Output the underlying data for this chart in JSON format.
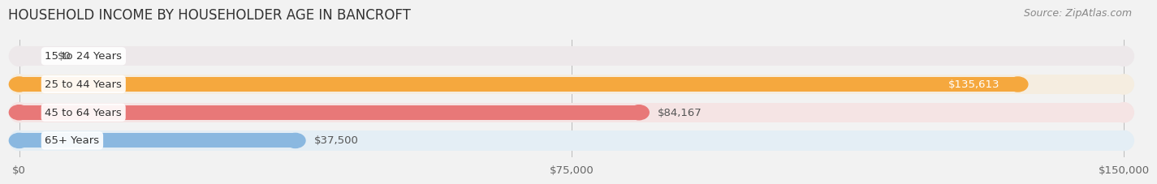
{
  "title": "HOUSEHOLD INCOME BY HOUSEHOLDER AGE IN BANCROFT",
  "source": "Source: ZipAtlas.com",
  "categories": [
    "15 to 24 Years",
    "25 to 44 Years",
    "45 to 64 Years",
    "65+ Years"
  ],
  "values": [
    0,
    135613,
    84167,
    37500
  ],
  "bar_colors": [
    "#f4a0b5",
    "#f5a83e",
    "#e87878",
    "#8ab8e0"
  ],
  "bar_bg_colors": [
    "#ede8ea",
    "#f5ede0",
    "#f5e4e4",
    "#e4eef5"
  ],
  "value_labels": [
    "$0",
    "$135,613",
    "$84,167",
    "$37,500"
  ],
  "x_ticks": [
    0,
    75000,
    150000
  ],
  "x_tick_labels": [
    "$0",
    "$75,000",
    "$150,000"
  ],
  "xlim": [
    0,
    150000
  ],
  "background_color": "#f2f2f2",
  "title_fontsize": 12,
  "label_fontsize": 9.5,
  "value_fontsize": 9.5,
  "source_fontsize": 9
}
